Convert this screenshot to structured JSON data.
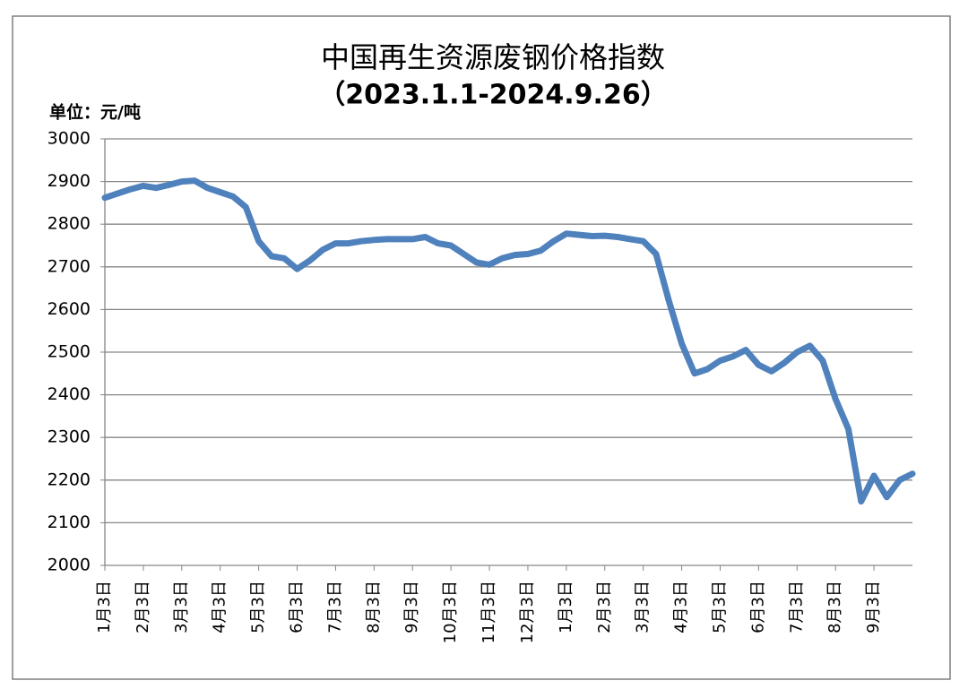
{
  "chart_data": {
    "type": "line",
    "title": "中国再生资源废钢价格指数",
    "subtitle": "（2023.1.1-2024.9.26）",
    "unit_label": "单位：元/吨",
    "categories": [
      "1月3日",
      null,
      null,
      "2月3日",
      null,
      null,
      "3月3日",
      null,
      null,
      "4月3日",
      null,
      null,
      "5月3日",
      null,
      null,
      "6月3日",
      null,
      null,
      "7月3日",
      null,
      null,
      "8月3日",
      null,
      null,
      "9月3日",
      null,
      null,
      "10月3日",
      null,
      null,
      "11月3日",
      null,
      null,
      "12月3日",
      null,
      null,
      "1月3日",
      null,
      null,
      "2月3日",
      null,
      null,
      "3月3日",
      null,
      null,
      "4月3日",
      null,
      null,
      "5月3日",
      null,
      null,
      "6月3日",
      null,
      null,
      "7月3日",
      null,
      null,
      "8月3日",
      null,
      null,
      "9月3日",
      null,
      null,
      null
    ],
    "series": [
      {
        "color": "#4f81bd",
        "values": [
          2862,
          2872,
          2882,
          2890,
          2885,
          2892,
          2900,
          2902,
          2885,
          2875,
          2865,
          2840,
          2760,
          2725,
          2720,
          2695,
          2715,
          2740,
          2755,
          2755,
          2760,
          2763,
          2765,
          2765,
          2765,
          2770,
          2755,
          2750,
          2730,
          2710,
          2705,
          2720,
          2728,
          2730,
          2738,
          2760,
          2778,
          2775,
          2772,
          2773,
          2770,
          2765,
          2760,
          2730,
          2620,
          2520,
          2450,
          2460,
          2480,
          2490,
          2505,
          2470,
          2455,
          2475,
          2500,
          2515,
          2480,
          2390,
          2320,
          2150,
          2210,
          2160,
          2200,
          2215
        ]
      }
    ],
    "ylim": [
      2000,
      3000
    ],
    "yticks": [
      2000,
      2100,
      2200,
      2300,
      2400,
      2500,
      2600,
      2700,
      2800,
      2900,
      3000
    ],
    "grid": true
  }
}
